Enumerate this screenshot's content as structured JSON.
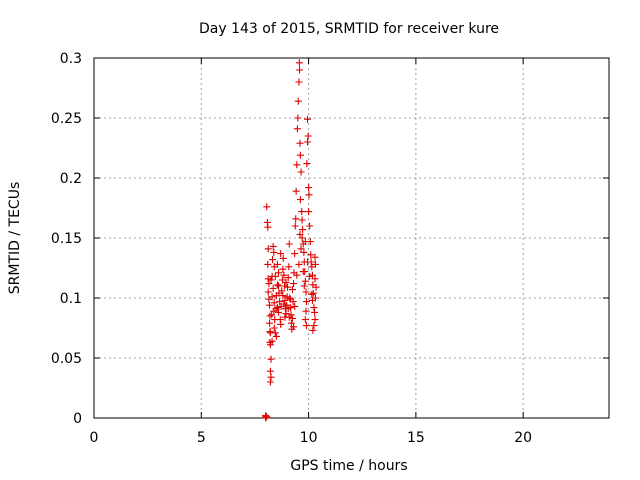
{
  "chart_data": {
    "type": "scatter",
    "title": "Day 143 of 2015, SRMTID for receiver kure",
    "xlabel": "GPS time / hours",
    "ylabel": "SRMTID / TECUs",
    "xlim": [
      0,
      24
    ],
    "ylim": [
      0,
      0.3
    ],
    "xticks": [
      0,
      5,
      10,
      15,
      20
    ],
    "xtick_labels": [
      "0",
      "5",
      "10",
      "15",
      "20"
    ],
    "yticks": [
      0,
      0.05,
      0.1,
      0.15,
      0.2,
      0.25,
      0.3
    ],
    "ytick_labels": [
      "0",
      "0.05",
      "0.1",
      "0.15",
      "0.2",
      "0.25",
      "0.3"
    ],
    "grid": true,
    "marker": "+",
    "color": "#e00000",
    "series": [
      {
        "name": "SRMTID",
        "points": [
          [
            8.0,
            0.0
          ],
          [
            8.0,
            0.001
          ],
          [
            8.0,
            0.002
          ],
          [
            8.05,
            0.001
          ],
          [
            8.05,
            0.176
          ],
          [
            8.08,
            0.163
          ],
          [
            8.1,
            0.159
          ],
          [
            8.12,
            0.141
          ],
          [
            8.1,
            0.128
          ],
          [
            8.12,
            0.116
          ],
          [
            8.15,
            0.112
          ],
          [
            8.12,
            0.105
          ],
          [
            8.15,
            0.099
          ],
          [
            8.18,
            0.094
          ],
          [
            8.2,
            0.085
          ],
          [
            8.18,
            0.079
          ],
          [
            8.2,
            0.072
          ],
          [
            8.22,
            0.071
          ],
          [
            8.2,
            0.063
          ],
          [
            8.22,
            0.061
          ],
          [
            8.25,
            0.049
          ],
          [
            8.22,
            0.039
          ],
          [
            8.25,
            0.034
          ],
          [
            8.22,
            0.03
          ],
          [
            8.28,
            0.086
          ],
          [
            8.3,
            0.118
          ],
          [
            8.32,
            0.132
          ],
          [
            8.35,
            0.143
          ],
          [
            8.38,
            0.138
          ],
          [
            8.4,
            0.126
          ],
          [
            8.35,
            0.108
          ],
          [
            8.3,
            0.101
          ],
          [
            8.4,
            0.096
          ],
          [
            8.38,
            0.089
          ],
          [
            8.42,
            0.082
          ],
          [
            8.4,
            0.075
          ],
          [
            8.45,
            0.071
          ],
          [
            8.5,
            0.068
          ],
          [
            8.48,
            0.091
          ],
          [
            8.5,
            0.102
          ],
          [
            8.55,
            0.111
          ],
          [
            8.6,
            0.121
          ],
          [
            8.55,
            0.128
          ],
          [
            8.62,
            0.104
          ],
          [
            8.65,
            0.097
          ],
          [
            8.6,
            0.088
          ],
          [
            8.68,
            0.082
          ],
          [
            8.7,
            0.078
          ],
          [
            8.72,
            0.093
          ],
          [
            8.75,
            0.106
          ],
          [
            8.78,
            0.115
          ],
          [
            8.8,
            0.124
          ],
          [
            8.82,
            0.133
          ],
          [
            8.85,
            0.119
          ],
          [
            8.88,
            0.11
          ],
          [
            8.9,
            0.098
          ],
          [
            8.92,
            0.091
          ],
          [
            8.95,
            0.087
          ],
          [
            8.9,
            0.084
          ],
          [
            8.98,
            0.094
          ],
          [
            9.0,
            0.101
          ],
          [
            9.02,
            0.109
          ],
          [
            9.05,
            0.117
          ],
          [
            9.08,
            0.126
          ],
          [
            9.1,
            0.145
          ],
          [
            9.12,
            0.1
          ],
          [
            9.15,
            0.092
          ],
          [
            9.18,
            0.086
          ],
          [
            9.2,
            0.079
          ],
          [
            9.22,
            0.074
          ],
          [
            9.25,
            0.083
          ],
          [
            9.28,
            0.097
          ],
          [
            9.3,
            0.112
          ],
          [
            9.32,
            0.121
          ],
          [
            9.35,
            0.137
          ],
          [
            9.38,
            0.16
          ],
          [
            9.4,
            0.166
          ],
          [
            9.42,
            0.189
          ],
          [
            9.45,
            0.211
          ],
          [
            9.48,
            0.241
          ],
          [
            9.5,
            0.25
          ],
          [
            9.52,
            0.264
          ],
          [
            9.55,
            0.28
          ],
          [
            9.57,
            0.296
          ],
          [
            9.58,
            0.29
          ],
          [
            9.6,
            0.229
          ],
          [
            9.62,
            0.219
          ],
          [
            9.65,
            0.205
          ],
          [
            9.62,
            0.182
          ],
          [
            9.68,
            0.172
          ],
          [
            9.7,
            0.165
          ],
          [
            9.72,
            0.157
          ],
          [
            9.7,
            0.15
          ],
          [
            9.75,
            0.145
          ],
          [
            9.78,
            0.138
          ],
          [
            9.8,
            0.13
          ],
          [
            9.82,
            0.122
          ],
          [
            9.85,
            0.114
          ],
          [
            9.88,
            0.105
          ],
          [
            9.9,
            0.097
          ],
          [
            9.88,
            0.089
          ],
          [
            9.85,
            0.082
          ],
          [
            9.9,
            0.077
          ],
          [
            9.92,
            0.212
          ],
          [
            9.95,
            0.23
          ],
          [
            9.98,
            0.235
          ],
          [
            9.95,
            0.249
          ],
          [
            10.0,
            0.192
          ],
          [
            10.02,
            0.186
          ],
          [
            10.0,
            0.172
          ],
          [
            10.05,
            0.16
          ],
          [
            10.08,
            0.147
          ],
          [
            10.1,
            0.136
          ],
          [
            10.12,
            0.13
          ],
          [
            10.15,
            0.126
          ],
          [
            10.18,
            0.119
          ],
          [
            10.2,
            0.111
          ],
          [
            10.22,
            0.104
          ],
          [
            10.18,
            0.098
          ],
          [
            10.25,
            0.092
          ],
          [
            10.28,
            0.088
          ],
          [
            10.3,
            0.082
          ],
          [
            10.25,
            0.077
          ],
          [
            10.2,
            0.073
          ],
          [
            10.3,
            0.134
          ],
          [
            10.32,
            0.128
          ],
          [
            10.3,
            0.116
          ],
          [
            10.35,
            0.109
          ],
          [
            10.32,
            0.1
          ],
          [
            8.3,
            0.064
          ],
          [
            8.45,
            0.118
          ],
          [
            8.55,
            0.092
          ],
          [
            8.7,
            0.137
          ],
          [
            8.8,
            0.102
          ],
          [
            8.95,
            0.113
          ],
          [
            9.05,
            0.091
          ],
          [
            9.15,
            0.099
          ],
          [
            9.25,
            0.107
          ],
          [
            9.35,
            0.093
          ],
          [
            9.45,
            0.119
          ],
          [
            9.55,
            0.128
          ],
          [
            9.65,
            0.141
          ],
          [
            9.75,
            0.122
          ],
          [
            9.85,
            0.147
          ],
          [
            9.95,
            0.13
          ],
          [
            10.05,
            0.118
          ],
          [
            10.15,
            0.103
          ],
          [
            8.25,
            0.115
          ],
          [
            8.6,
            0.11
          ],
          [
            8.85,
            0.095
          ],
          [
            9.1,
            0.084
          ],
          [
            9.3,
            0.076
          ],
          [
            9.6,
            0.153
          ],
          [
            9.8,
            0.11
          ]
        ]
      }
    ]
  }
}
